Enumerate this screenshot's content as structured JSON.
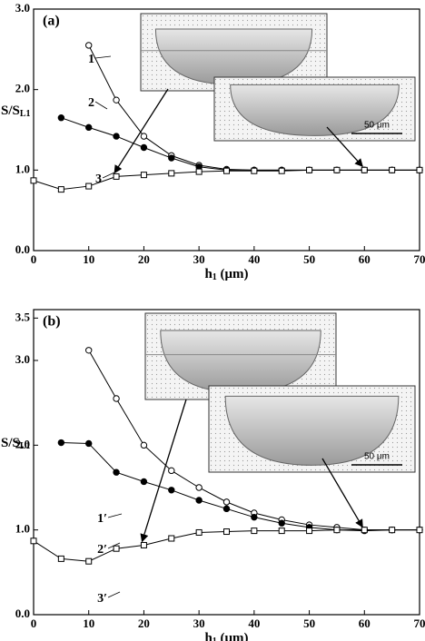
{
  "chart_data": [
    {
      "type": "line",
      "label": "(a)",
      "xlabel": {
        "text": "h",
        "sub": "1",
        "unit": " (μm)"
      },
      "ylabel": {
        "text": "S/S",
        "sub": "L1"
      },
      "xlim": [
        0,
        70
      ],
      "xticks": [
        0,
        10,
        20,
        30,
        40,
        50,
        60,
        70
      ],
      "ylim": [
        0,
        3.0
      ],
      "yticks": [
        {
          "value": 0,
          "label": "0.0"
        },
        {
          "value": 1,
          "label": "1.0"
        },
        {
          "value": 2,
          "label": "2.0"
        },
        {
          "value": 3,
          "label": "3.0"
        }
      ],
      "scale_bar": "50 μm",
      "series": [
        {
          "name": "1",
          "color": "#000000",
          "marker": "circle-open",
          "x": [
            10,
            15,
            20,
            25,
            30,
            35,
            40,
            45,
            50,
            55,
            60,
            65,
            70
          ],
          "values": [
            2.55,
            1.87,
            1.42,
            1.18,
            1.06,
            1.01,
            1.0,
            1.0,
            1.0,
            1.0,
            1.0,
            1.0,
            1.0
          ]
        },
        {
          "name": "2",
          "color": "#000000",
          "marker": "circle-filled",
          "x": [
            5,
            10,
            15,
            20,
            25,
            30,
            35,
            40,
            45,
            50,
            55,
            60,
            65,
            70
          ],
          "values": [
            1.65,
            1.53,
            1.42,
            1.28,
            1.15,
            1.04,
            1.0,
            1.0,
            1.0,
            1.0,
            1.0,
            1.0,
            1.0,
            1.0
          ]
        },
        {
          "name": "3",
          "color": "#000000",
          "marker": "square-open",
          "x": [
            0,
            5,
            10,
            15,
            20,
            25,
            30,
            35,
            40,
            45,
            50,
            55,
            60,
            65,
            70
          ],
          "values": [
            0.87,
            0.76,
            0.8,
            0.92,
            0.94,
            0.96,
            0.98,
            0.99,
            0.99,
            0.99,
            1.0,
            1.0,
            1.0,
            1.0,
            1.0
          ]
        }
      ]
    },
    {
      "type": "line",
      "label": "(b)",
      "xlabel": {
        "text": "h",
        "sub": "1",
        "unit": " (μm)"
      },
      "ylabel": {
        "text": "S/S",
        "sub": "L1"
      },
      "xlim": [
        0,
        70
      ],
      "xticks": [
        0,
        10,
        20,
        30,
        40,
        50,
        60,
        70
      ],
      "ylim": [
        0,
        3.6
      ],
      "yticks": [
        {
          "value": 0,
          "label": "0.0"
        },
        {
          "value": 1,
          "label": "1.0"
        },
        {
          "value": 2,
          "label": "2.0"
        },
        {
          "value": 3,
          "label": "3.0"
        },
        {
          "value": 3.5,
          "label": "3.5"
        }
      ],
      "scale_bar": "50 μm",
      "series": [
        {
          "name": "1′",
          "color": "#000000",
          "marker": "circle-open",
          "x": [
            10,
            15,
            20,
            25,
            30,
            35,
            40,
            45,
            50,
            55,
            60,
            65,
            70
          ],
          "values": [
            3.12,
            2.55,
            2.0,
            1.7,
            1.5,
            1.33,
            1.2,
            1.12,
            1.06,
            1.03,
            1.0,
            1.0,
            1.0
          ]
        },
        {
          "name": "2′",
          "color": "#000000",
          "marker": "circle-filled",
          "x": [
            5,
            10,
            15,
            20,
            25,
            30,
            35,
            40,
            45,
            50,
            55,
            60,
            65,
            70
          ],
          "values": [
            2.03,
            2.02,
            1.68,
            1.57,
            1.47,
            1.35,
            1.25,
            1.15,
            1.08,
            1.03,
            1.0,
            0.99,
            1.0,
            1.0
          ]
        },
        {
          "name": "3′",
          "color": "#000000",
          "marker": "square-open",
          "x": [
            0,
            5,
            10,
            15,
            20,
            25,
            30,
            35,
            40,
            45,
            50,
            55,
            60,
            65,
            70
          ],
          "values": [
            0.87,
            0.66,
            0.63,
            0.78,
            0.82,
            0.9,
            0.97,
            0.98,
            0.99,
            0.99,
            0.99,
            1.0,
            1.0,
            1.0,
            1.0
          ]
        }
      ]
    }
  ]
}
